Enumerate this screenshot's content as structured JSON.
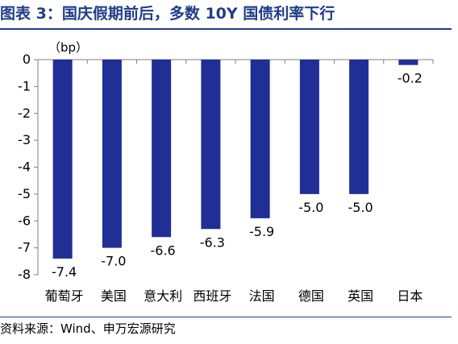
{
  "title": "图表 3：国庆假期前后，多数 10Y 国债利率下行",
  "source": "资料来源：Wind、申万宏源研究",
  "chart_data": {
    "type": "bar",
    "unit_label": "（bp）",
    "categories": [
      "葡萄牙",
      "美国",
      "意大利",
      "西班牙",
      "法国",
      "德国",
      "英国",
      "日本"
    ],
    "values": [
      -7.4,
      -7.0,
      -6.6,
      -6.3,
      -5.9,
      -5.0,
      -5.0,
      -0.2
    ],
    "data_labels": [
      "-7.4",
      "-7.0",
      "-6.6",
      "-6.3",
      "-5.9",
      "-5.0",
      "-5.0",
      "-0.2"
    ],
    "yticks": [
      "0",
      "-1",
      "-2",
      "-3",
      "-4",
      "-5",
      "-6",
      "-7",
      "-8"
    ],
    "ylim": [
      -8,
      0
    ],
    "bar_color": "#1f2f96",
    "legend": "none",
    "grid": false
  }
}
